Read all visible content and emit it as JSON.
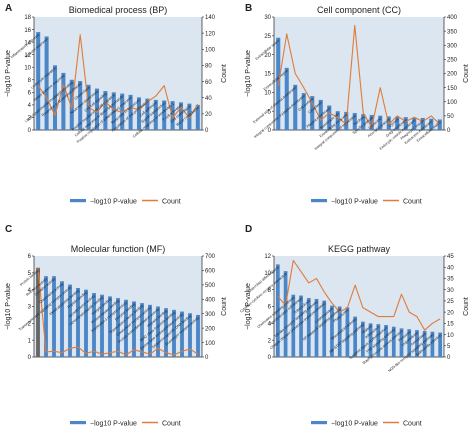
{
  "colors": {
    "bar": "#4a86c8",
    "line": "#e07b39",
    "plot_background": "#dbe6f1",
    "axis": "#222222",
    "text": "#222222",
    "dark_bar": "#666666"
  },
  "chart_data": [
    {
      "panel_letter": "A",
      "type": "bar+line",
      "title": "Biomedical process (BP)",
      "ylabel_left": "−log10 P-value",
      "ylabel_right": "Count",
      "ylim_left": [
        0,
        18
      ],
      "ylim_right": [
        0,
        140
      ],
      "yticks_left": [
        0,
        2,
        4,
        6,
        8,
        10,
        12,
        14,
        16,
        18
      ],
      "yticks_right": [
        0,
        20,
        40,
        60,
        80,
        100,
        120,
        140
      ],
      "legend": [
        "−log10 P-value",
        "Count"
      ],
      "categories": [
        "Inflammatory response",
        "Immune response",
        "Leukocyte migration",
        "Innate immune response",
        "Lipopolysaccharide-mediated signaling",
        "Response to lipopolysaccharide",
        "Chemotaxis",
        "Neutrophil chemotaxis",
        "Cell-cell signaling",
        "Positive regulation of cell migration",
        "Cellular response to lipopolysaccharide",
        "Positive regulation of inflammatory response",
        "Response to bacterium",
        "Regulation of cell proliferation",
        "Cell adhesion",
        "Signal transduction",
        "Cellular response to interleukin-1",
        "T cell activation",
        "Cell chemotaxis",
        "Blood coagulation"
      ],
      "series": [
        {
          "name": "−log10 P-value",
          "values": [
            15.6,
            14.9,
            10.3,
            9.1,
            8.0,
            7.8,
            7.2,
            6.6,
            6.2,
            6.0,
            5.8,
            5.6,
            5.2,
            5.0,
            4.8,
            4.7,
            4.6,
            4.4,
            4.2,
            4.0
          ]
        }
      ],
      "count": [
        55,
        40,
        18,
        56,
        27,
        118,
        28,
        22,
        35,
        25,
        22,
        28,
        25,
        35,
        42,
        55,
        15,
        28,
        15,
        32
      ]
    },
    {
      "panel_letter": "B",
      "type": "bar+line",
      "title": "Cell component (CC)",
      "ylabel_left": "−log10 P-value",
      "ylabel_right": "Count",
      "ylim_left": [
        0,
        30
      ],
      "ylim_right": [
        0,
        400
      ],
      "yticks_left": [
        0,
        5,
        10,
        15,
        20,
        25,
        30
      ],
      "yticks_right": [
        0,
        50,
        100,
        150,
        200,
        250,
        300,
        350,
        400
      ],
      "legend": [
        "−log10 P-value",
        "Count"
      ],
      "categories": [
        "Extracellular space",
        "Extracellular region",
        "External side of plasma membrane",
        "Integral component of plasma membrane",
        "Cell surface",
        "Cytoplasm",
        "Plasma membrane",
        "Membrane raft",
        "Extracellular exosome",
        "Integral component of membrane",
        "Nucleus",
        "Specific granule",
        "Lysosome",
        "Azurophil granule",
        "Cytosol",
        "Golgi membrane",
        "Endocytic vesicle membrane",
        "Phagocytic vesicle",
        "Endosome membrane",
        "Extracellular matrix"
      ],
      "series": [
        {
          "name": "−log10 P-value",
          "values": [
            24.5,
            16.5,
            12.0,
            9.8,
            9.0,
            8.0,
            6.5,
            5.0,
            4.8,
            4.5,
            4.2,
            4.0,
            3.8,
            3.6,
            3.5,
            3.4,
            3.3,
            3.2,
            3.0,
            2.8
          ]
        }
      ],
      "count": [
        155,
        340,
        200,
        150,
        95,
        35,
        60,
        45,
        20,
        370,
        60,
        10,
        150,
        20,
        50,
        30,
        45,
        30,
        50,
        20
      ]
    },
    {
      "panel_letter": "C",
      "type": "bar+line",
      "title": "Molecular function (MF)",
      "ylabel_left": "−log10 P-value",
      "ylabel_right": "Count",
      "ylim_left": [
        0,
        6
      ],
      "ylim_right": [
        0,
        700
      ],
      "yticks_left": [
        0,
        1,
        2,
        3,
        4,
        5,
        6
      ],
      "yticks_right": [
        0,
        100,
        200,
        300,
        400,
        500,
        600,
        700
      ],
      "legend": [
        "−log10 P-value",
        "Count"
      ],
      "categories": [
        "Protein binding",
        "Receptor activity",
        "Cytokine activity",
        "Chemokine activity",
        "Transmembrane signaling receptor activity",
        "Identical protein binding",
        "Peptide binding",
        "Growth factor activity",
        "Lipopolysaccharide binding",
        "Integrin binding",
        "Protein kinase binding",
        "Interleukin-1 receptor activity",
        "Enzyme binding",
        "Transcription factor binding",
        "Chemokine receptor activity",
        "Protein homodimerization activity",
        "Heparin binding",
        "MHC class II protein binding",
        "Serine-type endopeptidase activity",
        "Sequence-specific DNA binding",
        "Scavenger receptor activity"
      ],
      "series": [
        {
          "name": "−log10 P-value",
          "values": [
            5.3,
            4.8,
            4.8,
            4.5,
            4.3,
            4.1,
            4.0,
            3.8,
            3.7,
            3.6,
            3.5,
            3.4,
            3.3,
            3.2,
            3.1,
            3.0,
            2.9,
            2.8,
            2.7,
            2.6,
            2.5
          ]
        }
      ],
      "count": [
        620,
        35,
        40,
        30,
        60,
        70,
        25,
        40,
        20,
        30,
        40,
        15,
        50,
        35,
        20,
        60,
        30,
        15,
        40,
        55,
        20
      ]
    },
    {
      "panel_letter": "D",
      "type": "bar+line",
      "title": "KEGG pathway",
      "ylabel_left": "−log10 P-value",
      "ylabel_right": "Count",
      "ylim_left": [
        0,
        12
      ],
      "ylim_right": [
        0,
        45
      ],
      "yticks_left": [
        0,
        2,
        4,
        6,
        8,
        10,
        12
      ],
      "yticks_right": [
        0,
        5,
        10,
        15,
        20,
        25,
        30,
        35,
        40,
        45
      ],
      "legend": [
        "−log10 P-value",
        "Count"
      ],
      "categories": [
        "Osteoclast differentiation",
        "Cytokine-cytokine receptor interaction",
        "Chemokine signaling pathway",
        "Hematopoietic cell lineage",
        "Tuberculosis",
        "Toll-like receptor signaling pathway",
        "Chagas disease (American trypanosomiasis)",
        "Leishmaniasis",
        "NF-kappa B signaling pathway",
        "Phagosome",
        "Rheumatoid arthritis",
        "Jak-STAT signaling pathway",
        "Malaria",
        "Influenza A",
        "Systemic lupus erythematosus",
        "TNF signaling pathway",
        "Staphylococcus aureus infection",
        "Pertussis",
        "Legionellosis",
        "Amoebiasis",
        "NOD-like receptor signaling pathway",
        "Salmonella infection"
      ],
      "series": [
        {
          "name": "−log10 P-value",
          "values": [
            11.0,
            10.2,
            7.4,
            7.3,
            7.0,
            6.9,
            6.7,
            6.1,
            6.0,
            5.9,
            4.8,
            4.2,
            4.0,
            3.9,
            3.8,
            3.6,
            3.4,
            3.3,
            3.2,
            3.1,
            3.0,
            2.9
          ]
        }
      ],
      "count": [
        27,
        23,
        43,
        38,
        33,
        35,
        29,
        24,
        20,
        22,
        32,
        22,
        20,
        18,
        18,
        18,
        28,
        20,
        18,
        12,
        15,
        17
      ]
    }
  ]
}
